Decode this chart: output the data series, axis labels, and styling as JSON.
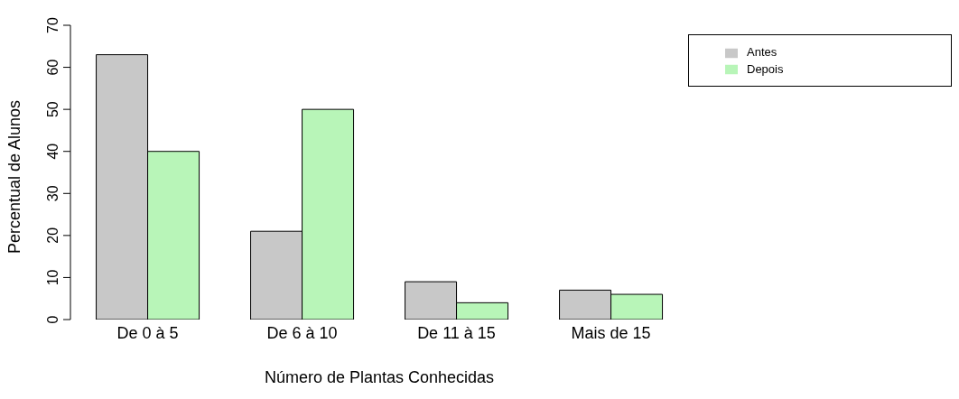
{
  "chart_data": {
    "type": "bar",
    "xlabel": "Número de Plantas Conhecidas",
    "ylabel": "Percentual de Alunos",
    "categories": [
      "De 0 à 5",
      "De 6 à 10",
      "De 11 à 15",
      "Mais de 15"
    ],
    "series": [
      {
        "name": "Antes",
        "color": "#c8c8c8",
        "values": [
          63,
          21,
          9,
          7
        ]
      },
      {
        "name": "Depois",
        "color": "#b8f5b8",
        "values": [
          40,
          50,
          4,
          6
        ]
      }
    ],
    "ylim": [
      0,
      70
    ],
    "yticks": [
      0,
      10,
      20,
      30,
      40,
      50,
      60,
      70
    ],
    "grid": false,
    "legend": "top right"
  }
}
